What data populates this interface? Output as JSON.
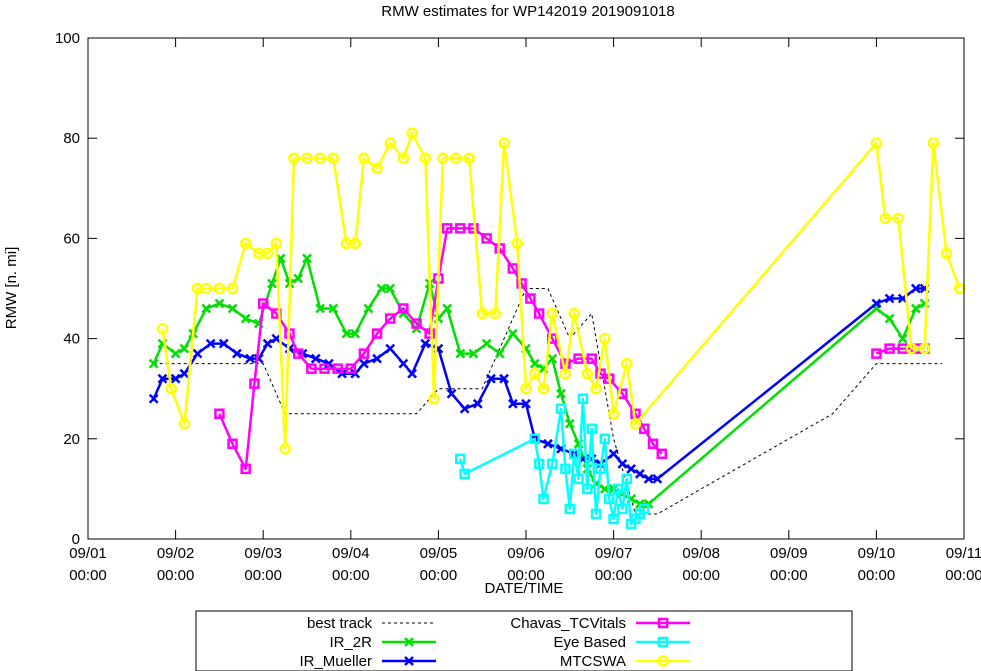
{
  "chart_data": {
    "type": "line",
    "title": "RMW estimates for WP142019 2019091018",
    "xlabel": "DATE/TIME",
    "ylabel": "RMW [n. mi]",
    "xlim": [
      0,
      10
    ],
    "ylim": [
      0,
      100
    ],
    "yticks": [
      0,
      20,
      40,
      60,
      80,
      100
    ],
    "xticks": [
      {
        "v": 0,
        "l1": "09/01",
        "l2": "00:00"
      },
      {
        "v": 1,
        "l1": "09/02",
        "l2": "00:00"
      },
      {
        "v": 2,
        "l1": "09/03",
        "l2": "00:00"
      },
      {
        "v": 3,
        "l1": "09/04",
        "l2": "00:00"
      },
      {
        "v": 4,
        "l1": "09/05",
        "l2": "00:00"
      },
      {
        "v": 5,
        "l1": "09/06",
        "l2": "00:00"
      },
      {
        "v": 6,
        "l1": "09/07",
        "l2": "00:00"
      },
      {
        "v": 7,
        "l1": "09/08",
        "l2": "00:00"
      },
      {
        "v": 8,
        "l1": "09/09",
        "l2": "00:00"
      },
      {
        "v": 9,
        "l1": "09/10",
        "l2": "00:00"
      },
      {
        "v": 10,
        "l1": "09/11",
        "l2": "00:00"
      }
    ],
    "x_units": "days after 09/01 00:00",
    "legend_position": "bottom",
    "series": [
      {
        "name": "best track",
        "color": "#000000",
        "marker": "none",
        "dashed": true,
        "points": [
          [
            0.75,
            35
          ],
          [
            1.0,
            35
          ],
          [
            1.5,
            35
          ],
          [
            2.0,
            35
          ],
          [
            2.25,
            25
          ],
          [
            2.5,
            25
          ],
          [
            3.0,
            25
          ],
          [
            3.5,
            25
          ],
          [
            3.75,
            25
          ],
          [
            4.0,
            30
          ],
          [
            4.5,
            30
          ],
          [
            4.75,
            40
          ],
          [
            5.0,
            50
          ],
          [
            5.25,
            50
          ],
          [
            5.5,
            40
          ],
          [
            5.75,
            45
          ],
          [
            6.0,
            20
          ],
          [
            6.25,
            5
          ],
          [
            6.5,
            5
          ],
          [
            7.0,
            10
          ],
          [
            7.5,
            15
          ],
          [
            8.0,
            20
          ],
          [
            8.5,
            25
          ],
          [
            9.0,
            35
          ],
          [
            9.5,
            35
          ],
          [
            9.75,
            35
          ]
        ]
      },
      {
        "name": "IR_2R",
        "color": "#00e000",
        "marker": "x",
        "points": [
          [
            0.75,
            35
          ],
          [
            0.85,
            39
          ],
          [
            1.0,
            37
          ],
          [
            1.1,
            38
          ],
          [
            1.2,
            41
          ],
          [
            1.35,
            46
          ],
          [
            1.5,
            47
          ],
          [
            1.65,
            46
          ],
          [
            1.8,
            44
          ],
          [
            1.95,
            43
          ],
          [
            2.1,
            51
          ],
          [
            2.2,
            56
          ],
          [
            2.3,
            51
          ],
          [
            2.4,
            52
          ],
          [
            2.5,
            56
          ],
          [
            2.65,
            46
          ],
          [
            2.8,
            46
          ],
          [
            2.95,
            41
          ],
          [
            3.05,
            41
          ],
          [
            3.2,
            46
          ],
          [
            3.35,
            50
          ],
          [
            3.45,
            50
          ],
          [
            3.6,
            45
          ],
          [
            3.75,
            42
          ],
          [
            3.9,
            51
          ],
          [
            4.0,
            44
          ],
          [
            4.1,
            46
          ],
          [
            4.25,
            37
          ],
          [
            4.4,
            37
          ],
          [
            4.55,
            39
          ],
          [
            4.7,
            37
          ],
          [
            4.85,
            41
          ],
          [
            5.0,
            38
          ],
          [
            5.1,
            35
          ],
          [
            5.2,
            34
          ],
          [
            5.3,
            36
          ],
          [
            5.4,
            29
          ],
          [
            5.5,
            23
          ],
          [
            5.6,
            19
          ],
          [
            5.7,
            14
          ],
          [
            5.8,
            11
          ],
          [
            5.9,
            10
          ],
          [
            6.0,
            10
          ],
          [
            6.1,
            9
          ],
          [
            6.2,
            8
          ],
          [
            6.3,
            7
          ],
          [
            6.4,
            7
          ],
          [
            9.0,
            46
          ],
          [
            9.15,
            44
          ],
          [
            9.3,
            40
          ],
          [
            9.45,
            46
          ],
          [
            9.55,
            47
          ]
        ]
      },
      {
        "name": "IR_Mueller",
        "color": "#0000ff",
        "marker": "x",
        "points": [
          [
            0.75,
            28
          ],
          [
            0.85,
            32
          ],
          [
            1.0,
            32
          ],
          [
            1.1,
            33
          ],
          [
            1.25,
            37
          ],
          [
            1.4,
            39
          ],
          [
            1.55,
            39
          ],
          [
            1.7,
            37
          ],
          [
            1.85,
            36
          ],
          [
            1.95,
            36
          ],
          [
            2.05,
            39
          ],
          [
            2.15,
            40
          ],
          [
            2.3,
            38
          ],
          [
            2.45,
            37
          ],
          [
            2.6,
            36
          ],
          [
            2.75,
            35
          ],
          [
            2.9,
            33
          ],
          [
            3.05,
            33
          ],
          [
            3.15,
            35
          ],
          [
            3.3,
            36
          ],
          [
            3.45,
            38
          ],
          [
            3.6,
            35
          ],
          [
            3.7,
            33
          ],
          [
            3.85,
            39
          ],
          [
            4.0,
            38
          ],
          [
            4.15,
            29
          ],
          [
            4.3,
            26
          ],
          [
            4.45,
            27
          ],
          [
            4.6,
            32
          ],
          [
            4.75,
            32
          ],
          [
            4.85,
            27
          ],
          [
            5.0,
            27
          ],
          [
            5.1,
            20
          ],
          [
            5.25,
            19
          ],
          [
            5.4,
            18
          ],
          [
            5.55,
            17
          ],
          [
            5.65,
            16
          ],
          [
            5.75,
            16
          ],
          [
            5.85,
            15
          ],
          [
            6.0,
            17
          ],
          [
            6.1,
            15
          ],
          [
            6.2,
            14
          ],
          [
            6.3,
            13
          ],
          [
            6.4,
            12
          ],
          [
            6.5,
            12
          ],
          [
            9.0,
            47
          ],
          [
            9.15,
            48
          ],
          [
            9.3,
            48
          ],
          [
            9.45,
            50
          ],
          [
            9.55,
            50
          ]
        ]
      },
      {
        "name": "Chavas_TCVitals",
        "color": "#ff00ff",
        "marker": "square",
        "segments": [
          [
            [
              1.5,
              25
            ],
            [
              1.65,
              19
            ],
            [
              1.8,
              14
            ],
            [
              1.9,
              31
            ],
            [
              2.0,
              47
            ],
            [
              2.15,
              45
            ],
            [
              2.3,
              41
            ],
            [
              2.4,
              37
            ],
            [
              2.55,
              34
            ],
            [
              2.7,
              34
            ],
            [
              2.85,
              34
            ],
            [
              3.0,
              34
            ],
            [
              3.15,
              37
            ],
            [
              3.3,
              41
            ],
            [
              3.45,
              44
            ],
            [
              3.6,
              46
            ],
            [
              3.75,
              43
            ],
            [
              3.9,
              41
            ],
            [
              4.0,
              52
            ],
            [
              4.1,
              62
            ],
            [
              4.25,
              62
            ],
            [
              4.4,
              62
            ],
            [
              4.55,
              60
            ],
            [
              4.7,
              58
            ],
            [
              4.85,
              54
            ],
            [
              4.95,
              51
            ],
            [
              5.05,
              48
            ],
            [
              5.15,
              45
            ],
            [
              5.3,
              40
            ],
            [
              5.45,
              35
            ],
            [
              5.6,
              36
            ],
            [
              5.75,
              36
            ],
            [
              5.85,
              33
            ],
            [
              5.95,
              32
            ],
            [
              6.1,
              29
            ],
            [
              6.25,
              25
            ],
            [
              6.35,
              22
            ],
            [
              6.45,
              19
            ],
            [
              6.55,
              17
            ]
          ],
          [
            [
              9.0,
              37
            ],
            [
              9.15,
              38
            ],
            [
              9.3,
              38
            ],
            [
              9.45,
              38
            ],
            [
              9.55,
              38
            ]
          ]
        ]
      },
      {
        "name": "Eye Based",
        "color": "#00ffff",
        "marker": "square",
        "points": [
          [
            4.25,
            16
          ],
          [
            4.3,
            13
          ],
          [
            5.1,
            20
          ],
          [
            5.15,
            15
          ],
          [
            5.2,
            8
          ],
          [
            5.3,
            15
          ],
          [
            5.4,
            26
          ],
          [
            5.45,
            14
          ],
          [
            5.5,
            6
          ],
          [
            5.55,
            17
          ],
          [
            5.6,
            12
          ],
          [
            5.65,
            28
          ],
          [
            5.7,
            10
          ],
          [
            5.75,
            22
          ],
          [
            5.8,
            5
          ],
          [
            5.85,
            14
          ],
          [
            5.9,
            20
          ],
          [
            5.95,
            8
          ],
          [
            6.0,
            4
          ],
          [
            6.05,
            10
          ],
          [
            6.1,
            6
          ],
          [
            6.15,
            12
          ],
          [
            6.2,
            3
          ],
          [
            6.25,
            4
          ],
          [
            6.3,
            5
          ],
          [
            6.35,
            6
          ]
        ]
      },
      {
        "name": "MTCSWA",
        "color": "#ffff00",
        "marker": "circle",
        "points": [
          [
            0.85,
            42
          ],
          [
            0.95,
            30
          ],
          [
            1.1,
            23
          ],
          [
            1.25,
            50
          ],
          [
            1.35,
            50
          ],
          [
            1.5,
            50
          ],
          [
            1.65,
            50
          ],
          [
            1.8,
            59
          ],
          [
            1.95,
            57
          ],
          [
            2.05,
            57
          ],
          [
            2.15,
            59
          ],
          [
            2.25,
            18
          ],
          [
            2.35,
            76
          ],
          [
            2.5,
            76
          ],
          [
            2.65,
            76
          ],
          [
            2.8,
            76
          ],
          [
            2.95,
            59
          ],
          [
            3.05,
            59
          ],
          [
            3.15,
            76
          ],
          [
            3.3,
            74
          ],
          [
            3.45,
            79
          ],
          [
            3.6,
            76
          ],
          [
            3.7,
            81
          ],
          [
            3.85,
            76
          ],
          [
            3.95,
            28
          ],
          [
            4.05,
            76
          ],
          [
            4.2,
            76
          ],
          [
            4.35,
            76
          ],
          [
            4.5,
            45
          ],
          [
            4.65,
            45
          ],
          [
            4.75,
            79
          ],
          [
            4.9,
            59
          ],
          [
            5.0,
            30
          ],
          [
            5.1,
            33
          ],
          [
            5.2,
            30
          ],
          [
            5.3,
            45
          ],
          [
            5.45,
            33
          ],
          [
            5.55,
            45
          ],
          [
            5.7,
            33
          ],
          [
            5.8,
            30
          ],
          [
            5.9,
            40
          ],
          [
            6.0,
            25
          ],
          [
            6.15,
            35
          ],
          [
            6.25,
            23
          ],
          [
            9.0,
            79
          ],
          [
            9.1,
            64
          ],
          [
            9.25,
            64
          ],
          [
            9.4,
            38
          ],
          [
            9.55,
            38
          ],
          [
            9.65,
            79
          ],
          [
            9.8,
            57
          ],
          [
            9.95,
            50
          ]
        ]
      }
    ]
  }
}
